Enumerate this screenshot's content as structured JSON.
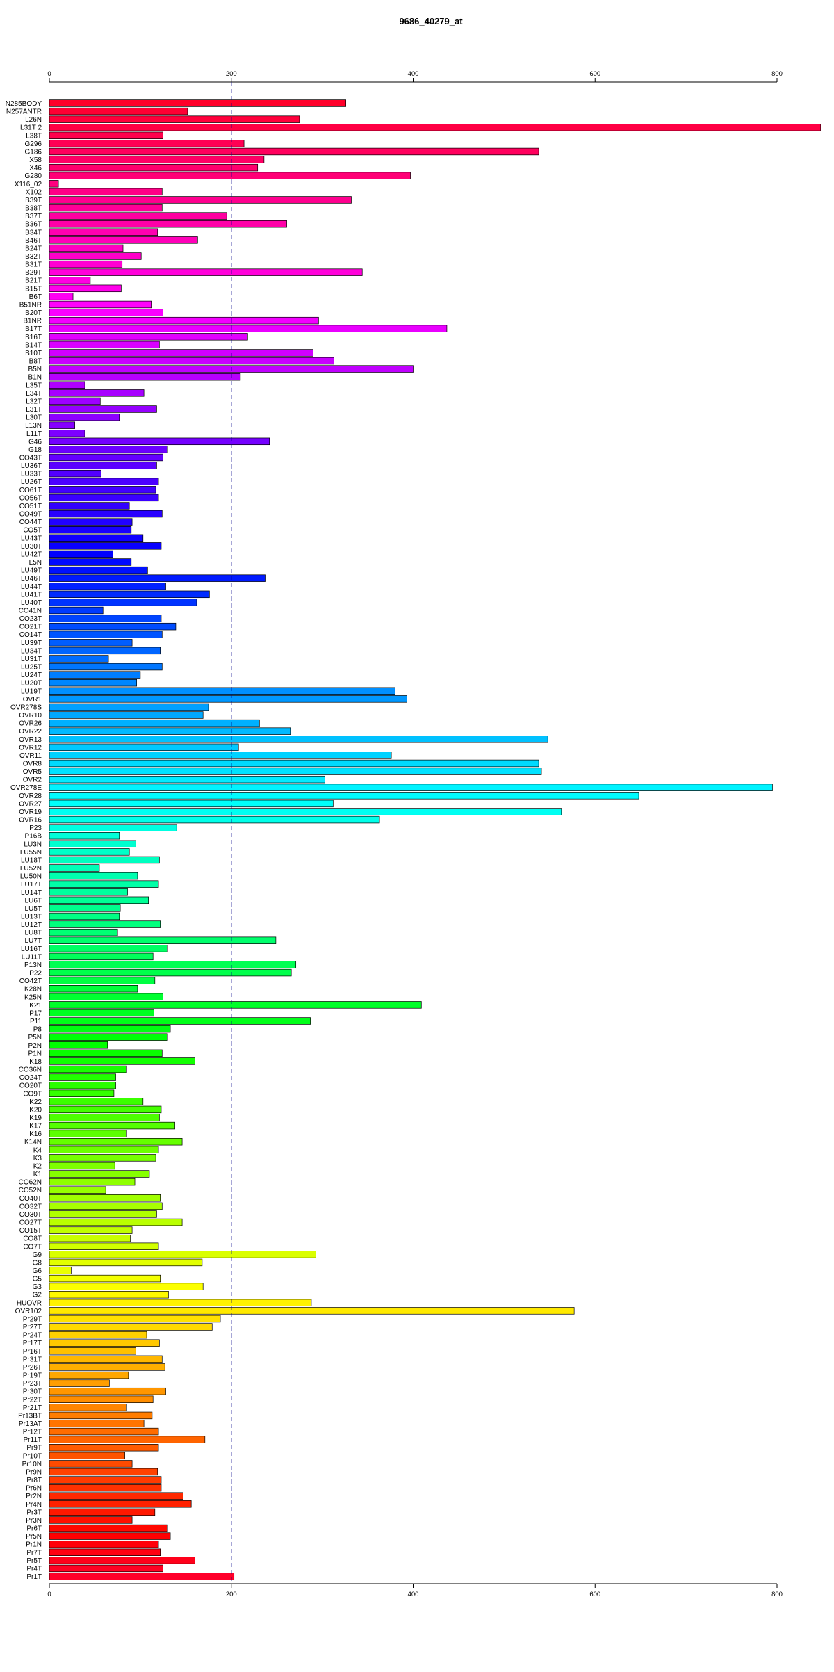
{
  "chart_data": {
    "type": "bar",
    "orientation": "horizontal",
    "title": "9686_40279_at",
    "xlabel": "",
    "ylabel": "",
    "xlim": [
      0,
      800
    ],
    "x_ticks": [
      0,
      200,
      400,
      600,
      800
    ],
    "reference_line": 200,
    "grid": false,
    "categories": [
      "N285BODY",
      "N257ANTR",
      "L26N",
      "L31T 2",
      "L38T",
      "G296",
      "G186",
      "X58",
      "X46",
      "G280",
      "X116_02",
      "X102",
      "B39T",
      "B38T",
      "B37T",
      "B36T",
      "B34T",
      "B46T",
      "B24T",
      "B32T",
      "B31T",
      "B29T",
      "B21T",
      "B15T",
      "B6T",
      "B51NR",
      "B20T",
      "B1NR",
      "B17T",
      "B16T",
      "B14T",
      "B10T",
      "B8T",
      "B5N",
      "B1N",
      "L35T",
      "L34T",
      "L32T",
      "L31T",
      "L30T",
      "L13N",
      "L11T",
      "G46",
      "G18",
      "CO43T",
      "LU36T",
      "LU33T",
      "LU26T",
      "CO61T",
      "CO56T",
      "CO51T",
      "CO49T",
      "CO44T",
      "CO5T",
      "LU43T",
      "LU30T",
      "LU42T",
      "L5N",
      "LU49T",
      "LU46T",
      "LU44T",
      "LU41T",
      "LU40T",
      "CO41N",
      "CO23T",
      "CO21T",
      "CO14T",
      "LU39T",
      "LU34T",
      "LU31T",
      "LU25T",
      "LU24T",
      "LU20T",
      "LU19T",
      "OVR1",
      "OVR278S",
      "OVR10",
      "OVR26",
      "OVR22",
      "OVR13",
      "OVR12",
      "OVR11",
      "OVR8",
      "OVR5",
      "OVR2",
      "OVR278E",
      "OVR28",
      "OVR27",
      "OVR19",
      "OVR16",
      "P23",
      "P16B",
      "LU3N",
      "LU55N",
      "LU18T",
      "LU52N",
      "LU50N",
      "LU17T",
      "LU14T",
      "LU6T",
      "LU5T",
      "LU13T",
      "LU12T",
      "LU8T",
      "LU7T",
      "LU16T",
      "LU11T",
      "P13N",
      "P22",
      "CO42T",
      "K28N",
      "K25N",
      "K21",
      "P17",
      "P11",
      "P8",
      "P5N",
      "P2N",
      "P1N",
      "K18",
      "CO36N",
      "CO24T",
      "CO20T",
      "CO9T",
      "K22",
      "K20",
      "K19",
      "K17",
      "K16",
      "K14N",
      "K4",
      "K3",
      "K2",
      "K1",
      "CO62N",
      "CO52N",
      "CO40T",
      "CO32T",
      "CO30T",
      "CO27T",
      "CO15T",
      "CO8T",
      "CO7T",
      "G9",
      "G8",
      "G6",
      "G5",
      "G3",
      "G2",
      "HUOVR",
      "OVR102",
      "Pr29T",
      "Pr27T",
      "Pr24T",
      "Pr17T",
      "Pr16T",
      "Pr31T",
      "Pr26T",
      "Pr19T",
      "Pr23T",
      "Pr30T",
      "Pr22T",
      "Pr21T",
      "Pr13BT",
      "Pr13AT",
      "Pr12T",
      "Pr11T",
      "Pr9T",
      "Pr10T",
      "Pr10N",
      "Pr9N",
      "Pr8T",
      "Pr6N",
      "Pr2N",
      "Pr4N",
      "Pr3T",
      "Pr3N",
      "Pr6T",
      "Pr5N",
      "Pr1N",
      "Pr7T",
      "Pr5T",
      "Pr4T",
      "Pr1T"
    ],
    "values": [
      326,
      152,
      275,
      848,
      125,
      214,
      538,
      236,
      229,
      397,
      10,
      124,
      332,
      124,
      195,
      261,
      119,
      163,
      81,
      101,
      80,
      344,
      45,
      79,
      26,
      112,
      125,
      296,
      437,
      218,
      121,
      290,
      313,
      400,
      210,
      39,
      104,
      56,
      118,
      77,
      28,
      39,
      242,
      130,
      125,
      118,
      57,
      120,
      117,
      120,
      88,
      124,
      91,
      90,
      103,
      123,
      70,
      90,
      108,
      238,
      128,
      176,
      162,
      59,
      123,
      139,
      124,
      91,
      122,
      65,
      124,
      100,
      96,
      380,
      393,
      175,
      169,
      231,
      265,
      548,
      208,
      376,
      538,
      541,
      303,
      795,
      648,
      312,
      563,
      363,
      140,
      77,
      95,
      88,
      121,
      55,
      97,
      120,
      86,
      109,
      78,
      77,
      122,
      75,
      249,
      130,
      114,
      271,
      266,
      116,
      97,
      125,
      409,
      115,
      287,
      133,
      130,
      64,
      124,
      160,
      85,
      73,
      73,
      71,
      103,
      123,
      121,
      138,
      85,
      146,
      120,
      117,
      72,
      110,
      94,
      62,
      122,
      124,
      118,
      146,
      91,
      89,
      120,
      293,
      168,
      24,
      122,
      169,
      131,
      288,
      577,
      188,
      179,
      107,
      121,
      95,
      124,
      127,
      87,
      66,
      128,
      114,
      85,
      113,
      104,
      120,
      171,
      120,
      83,
      91,
      119,
      123,
      123,
      147,
      156,
      116,
      91,
      130,
      133,
      120,
      122,
      160,
      125,
      203
    ],
    "colors": {
      "bar_outline": "#000000",
      "reference_line": "#00008b"
    }
  }
}
